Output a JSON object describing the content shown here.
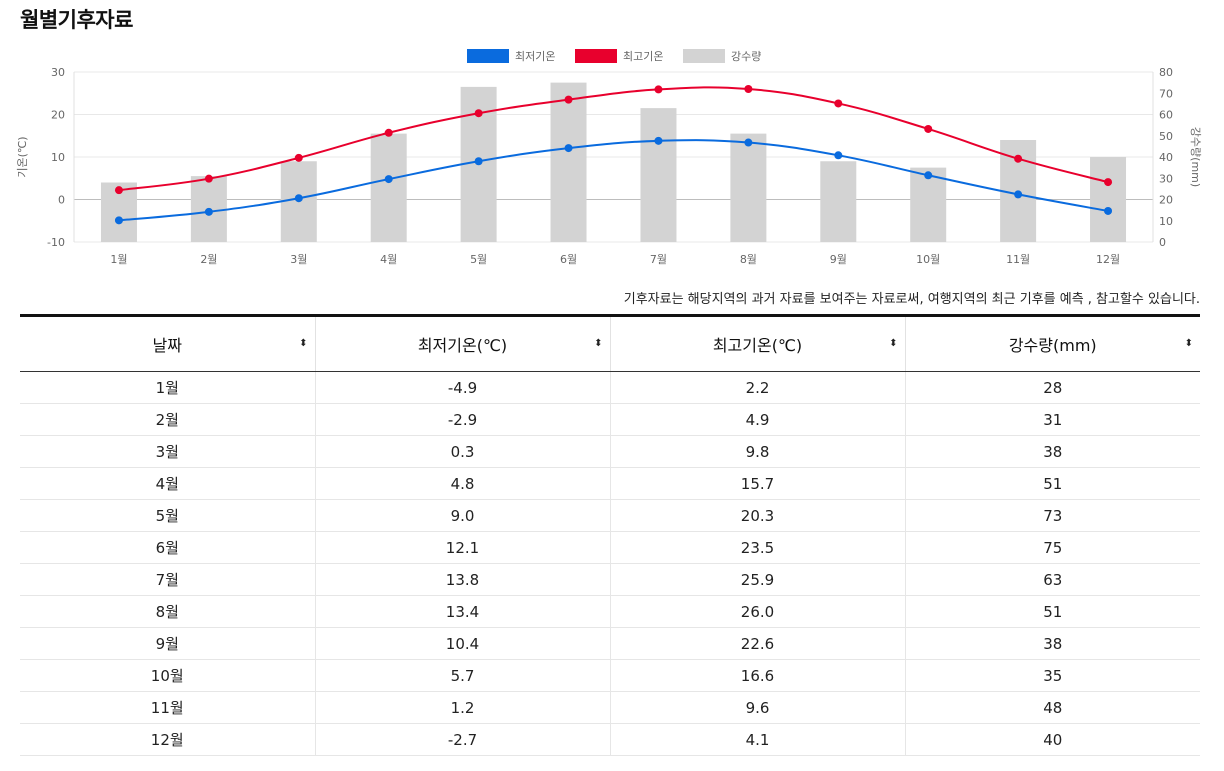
{
  "page": {
    "title": "월별기후자료",
    "note": "기후자료는 해당지역의 과거 자료를 보여주는 자료로써, 여행지역의 최근 기후를 예측 , 참고할수 있습니다."
  },
  "chart_data": {
    "type": "bar+line",
    "categories": [
      "1월",
      "2월",
      "3월",
      "4월",
      "5월",
      "6월",
      "7월",
      "8월",
      "9월",
      "10월",
      "11월",
      "12월"
    ],
    "series": [
      {
        "name": "최저기온",
        "type": "line",
        "axis": "left",
        "color": "#0a6bde",
        "values": [
          -4.9,
          -2.9,
          0.3,
          4.8,
          9.0,
          12.1,
          13.8,
          13.4,
          10.4,
          5.7,
          1.2,
          -2.7
        ]
      },
      {
        "name": "최고기온",
        "type": "line",
        "axis": "left",
        "color": "#e8002d",
        "values": [
          2.2,
          4.9,
          9.8,
          15.7,
          20.3,
          23.5,
          25.9,
          26.0,
          22.6,
          16.6,
          9.6,
          4.1
        ]
      },
      {
        "name": "강수량",
        "type": "bar",
        "axis": "right",
        "color": "#d3d3d3",
        "values": [
          28,
          31,
          38,
          51,
          73,
          75,
          63,
          51,
          38,
          35,
          48,
          40
        ]
      }
    ],
    "ylabel": "기온(℃)",
    "y2label": "강수량(mm)",
    "ylim": [
      -10,
      30
    ],
    "y2lim": [
      0,
      80
    ],
    "yticks": [
      "30",
      "20",
      "10",
      "0",
      "-10"
    ],
    "y2ticks": [
      "80",
      "70",
      "60",
      "50",
      "40",
      "30",
      "20",
      "10",
      "0"
    ],
    "legend": "top-center",
    "grid": true
  },
  "table": {
    "headers": [
      "날짜",
      "최저기온(℃)",
      "최고기온(℃)",
      "강수량(mm)"
    ],
    "sort_icon": "⬍",
    "rows": [
      [
        "1월",
        "-4.9",
        "2.2",
        "28"
      ],
      [
        "2월",
        "-2.9",
        "4.9",
        "31"
      ],
      [
        "3월",
        "0.3",
        "9.8",
        "38"
      ],
      [
        "4월",
        "4.8",
        "15.7",
        "51"
      ],
      [
        "5월",
        "9.0",
        "20.3",
        "73"
      ],
      [
        "6월",
        "12.1",
        "23.5",
        "75"
      ],
      [
        "7월",
        "13.8",
        "25.9",
        "63"
      ],
      [
        "8월",
        "13.4",
        "26.0",
        "51"
      ],
      [
        "9월",
        "10.4",
        "22.6",
        "38"
      ],
      [
        "10월",
        "5.7",
        "16.6",
        "35"
      ],
      [
        "11월",
        "1.2",
        "9.6",
        "48"
      ],
      [
        "12월",
        "-2.7",
        "4.1",
        "40"
      ]
    ]
  }
}
